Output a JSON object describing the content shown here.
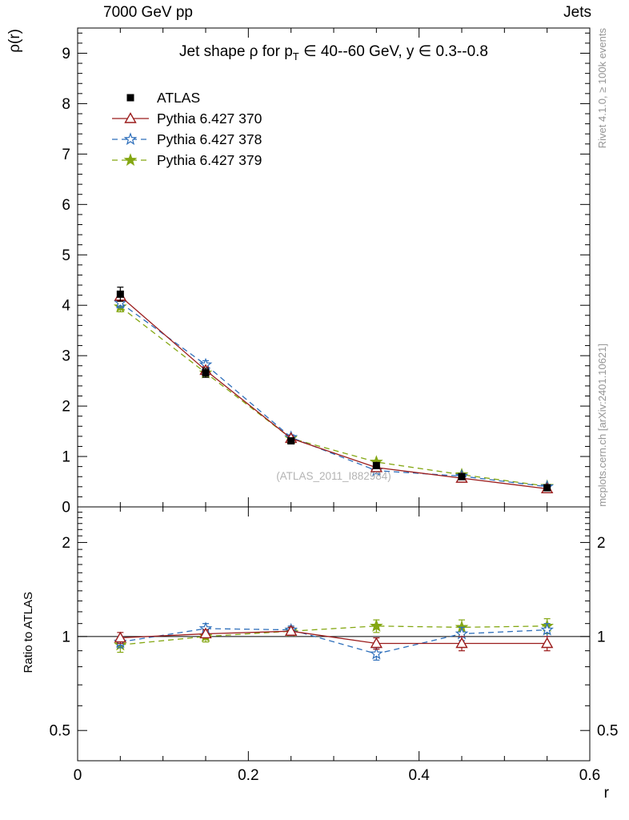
{
  "header": {
    "left": "7000 GeV pp",
    "right": "Jets"
  },
  "side_notes": {
    "top_right": "Rivet 4.1.0, ≥ 100k events",
    "bottom_right": "mcplots.cern.ch [arXiv:2401.10621]"
  },
  "watermark": "(ATLAS_2011_I882984)",
  "chart_data": {
    "type": "line",
    "title": "Jet shape ρ for p_T ∈ 40--60 GeV, y ∈ 0.3--0.8",
    "title_prefix": "Jet shape ρ for p",
    "title_sub": "T",
    "title_suffix": " ∈ 40--60 GeV, y ∈ 0.3--0.8",
    "xlabel": "r",
    "xlim": [
      0,
      0.6
    ],
    "xticks": [
      0,
      0.2,
      0.4,
      0.6
    ],
    "xtick_labels": [
      "0",
      "0.2",
      "0.4",
      "0.6"
    ],
    "x": [
      0.05,
      0.15,
      0.25,
      0.35,
      0.45,
      0.55
    ],
    "main_panel": {
      "ylabel": "ρ(r)",
      "ylim": [
        0,
        9.5
      ],
      "yticks": [
        0,
        1,
        2,
        3,
        4,
        5,
        6,
        7,
        8,
        9
      ],
      "grid": false,
      "legend_position": "top-left",
      "series": [
        {
          "name": "ATLAS",
          "color": "#000000",
          "marker": "square-filled",
          "line": "none",
          "values": [
            4.22,
            2.66,
            1.31,
            0.82,
            0.6,
            0.38
          ],
          "errors": [
            0.14,
            0.09,
            0.05,
            0.04,
            0.03,
            0.02
          ]
        },
        {
          "name": "Pythia 6.427 370",
          "color": "#9b1c1c",
          "marker": "triangle-open",
          "line": "solid",
          "values": [
            4.18,
            2.71,
            1.36,
            0.78,
            0.57,
            0.36
          ],
          "errors": [
            0.1,
            0.07,
            0.04,
            0.03,
            0.03,
            0.02
          ]
        },
        {
          "name": "Pythia 6.427 378",
          "color": "#2e6fbb",
          "marker": "star-open",
          "line": "dashed",
          "values": [
            4.05,
            2.82,
            1.38,
            0.72,
            0.61,
            0.4
          ],
          "errors": [
            0.1,
            0.08,
            0.05,
            0.03,
            0.03,
            0.02
          ]
        },
        {
          "name": "Pythia 6.427 379",
          "color": "#84a712",
          "marker": "star-filled",
          "line": "dashed",
          "values": [
            3.97,
            2.66,
            1.36,
            0.89,
            0.64,
            0.41
          ],
          "errors": [
            0.1,
            0.07,
            0.04,
            0.03,
            0.03,
            0.02
          ]
        }
      ]
    },
    "ratio_panel": {
      "ylabel": "Ratio to ATLAS",
      "yscale": "log",
      "ylim": [
        0.4,
        2.6
      ],
      "yticks": [
        0.5,
        1,
        2
      ],
      "ytick_labels": [
        "0.5",
        "1",
        "2"
      ],
      "reference": 1,
      "series": [
        {
          "name": "Pythia 6.427 370",
          "color": "#9b1c1c",
          "marker": "triangle-open",
          "line": "solid",
          "values": [
            0.99,
            1.02,
            1.04,
            0.95,
            0.95,
            0.95
          ],
          "errors": [
            0.04,
            0.03,
            0.03,
            0.04,
            0.05,
            0.05
          ]
        },
        {
          "name": "Pythia 6.427 378",
          "color": "#2e6fbb",
          "marker": "star-open",
          "line": "dashed",
          "values": [
            0.96,
            1.06,
            1.05,
            0.88,
            1.02,
            1.05
          ],
          "errors": [
            0.04,
            0.04,
            0.03,
            0.04,
            0.05,
            0.05
          ]
        },
        {
          "name": "Pythia 6.427 379",
          "color": "#84a712",
          "marker": "star-filled",
          "line": "dashed",
          "values": [
            0.94,
            1.0,
            1.04,
            1.08,
            1.07,
            1.08
          ],
          "errors": [
            0.05,
            0.04,
            0.03,
            0.05,
            0.06,
            0.06
          ]
        }
      ]
    }
  }
}
